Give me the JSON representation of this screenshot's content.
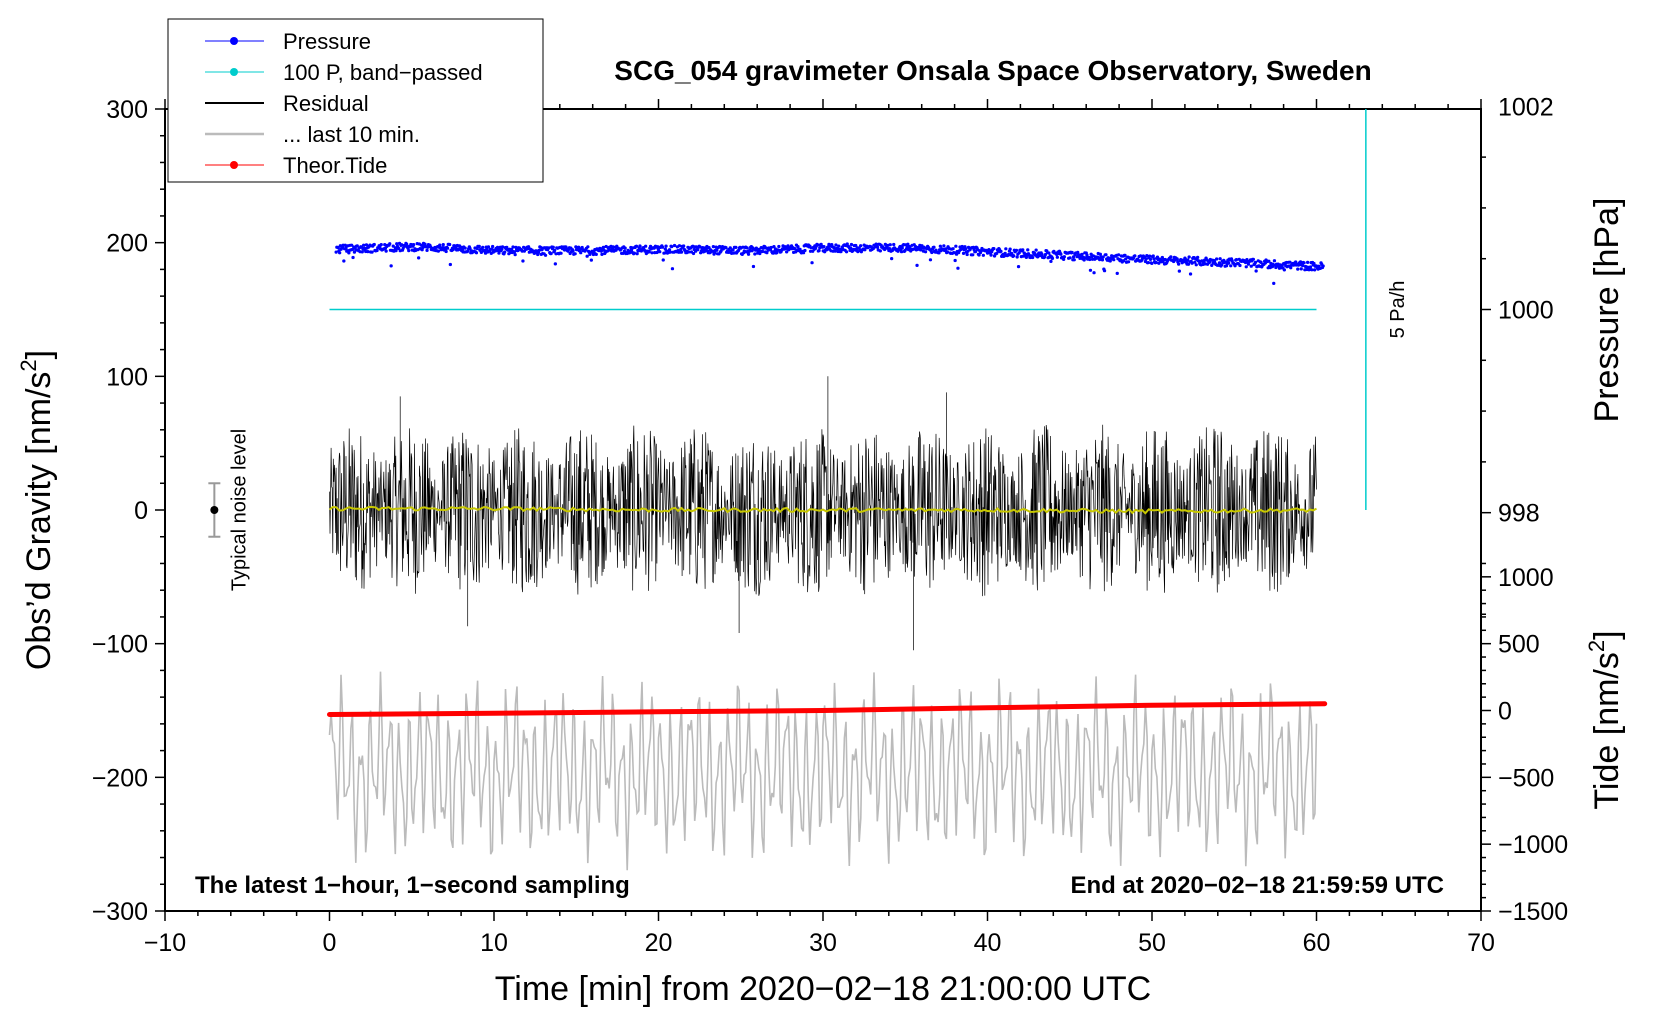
{
  "chart_data": {
    "type": "line",
    "title": "SCG_054 gravimeter Onsala Space Observatory, Sweden",
    "xlabel": "Time [min] from 2020−02−18 21:00:00 UTC",
    "ylabel_left_main": "Obs’d Gravity [nm/s",
    "ylabel_left_sup": "2",
    "ylabel_left_end": "]",
    "ylabel_right_pressure": "Pressure [hPa]",
    "ylabel_right_tide_main": "Tide [nm/s",
    "ylabel_right_tide_sup": "2",
    "ylabel_right_tide_end": "]",
    "xlim": [
      -10,
      70
    ],
    "ylim": [
      -300,
      300
    ],
    "x_ticks": [
      -10,
      0,
      10,
      20,
      30,
      40,
      50,
      60,
      70
    ],
    "x_tick_labels": [
      "−10",
      "0",
      "10",
      "20",
      "30",
      "40",
      "50",
      "60",
      "70"
    ],
    "y_ticks": [
      -300,
      -200,
      -100,
      0,
      100,
      200,
      300
    ],
    "y_tick_labels": [
      "−300",
      "−200",
      "−100",
      "0",
      "100",
      "200",
      "300"
    ],
    "pressure_axis": {
      "ticks": [
        998,
        1000,
        1002
      ],
      "tick_labels": [
        "998",
        "1000",
        "1002"
      ],
      "ref_value": 1000,
      "ref_gravity": 150,
      "gravity_per_hpa": 76
    },
    "tide_axis": {
      "ticks": [
        -1500,
        -1000,
        -500,
        0,
        500,
        1000
      ],
      "tick_labels": [
        "−1500",
        "−1000",
        "−500",
        "0",
        "500",
        "1000"
      ],
      "ref_value": 0,
      "ref_gravity": -150,
      "gravity_per_unit": 0.1
    },
    "legend_position": "top-left",
    "legend": [
      {
        "label": "Pressure",
        "color": "#0000ff",
        "marker": true
      },
      {
        "label": "100 P, band−passed",
        "color": "#00cccc",
        "marker": true
      },
      {
        "label": "Residual",
        "color": "#000000",
        "marker": false
      },
      {
        "label": "... last 10 min.",
        "color": "#bbbbbb",
        "marker": false
      },
      {
        "label": "Theor.Tide",
        "color": "#ff0000",
        "marker": true
      }
    ],
    "series": [
      {
        "name": "Pressure",
        "color": "#0000ff",
        "style": "dots",
        "x": [
          0,
          5,
          10,
          15,
          20,
          25,
          30,
          35,
          40,
          45,
          50,
          55,
          60
        ],
        "y": [
          195,
          197,
          194,
          194,
          195,
          194,
          196,
          196,
          193,
          190,
          187,
          185,
          182
        ]
      },
      {
        "name": "100 P, band−passed",
        "color": "#00cccc",
        "style": "line",
        "x": [
          0,
          60
        ],
        "y": [
          150,
          150
        ]
      },
      {
        "name": "Residual",
        "color": "#000000",
        "style": "noise",
        "x_range": [
          0,
          60
        ],
        "envelope": 65,
        "peaks": [
          {
            "x": 4.3,
            "y": 85
          },
          {
            "x": 30.3,
            "y": 100
          },
          {
            "x": 35.5,
            "y": -105
          },
          {
            "x": 37.5,
            "y": 88
          },
          {
            "x": 8.4,
            "y": -87
          },
          {
            "x": 24.9,
            "y": -92
          }
        ]
      },
      {
        "name": "Residual smoothed",
        "color": "#c8c800",
        "style": "line",
        "x": [
          0,
          10,
          20,
          30,
          40,
          50,
          60
        ],
        "y": [
          1,
          1,
          0,
          0,
          0,
          -1,
          0
        ]
      },
      {
        "name": "... last 10 min.",
        "color": "#bbbbbb",
        "style": "oscillation",
        "x_range": [
          0,
          60
        ],
        "center": -195,
        "amplitude": 40,
        "max": -110,
        "min": -270
      },
      {
        "name": "Theor.Tide",
        "color": "#ff0000",
        "style": "thick-line",
        "x": [
          0,
          10,
          20,
          30,
          40,
          50,
          60.5
        ],
        "y": [
          -153,
          -152,
          -151,
          -150,
          -148,
          -146,
          -145
        ]
      }
    ],
    "noise_bar": {
      "x": -7,
      "center": 0,
      "half_range": 20,
      "label": "Typical noise level"
    },
    "rate_bar": {
      "x": 63,
      "y_top": 300,
      "y_bottom": 0,
      "label": "5 Pa/h",
      "color": "#00cccc"
    },
    "annotation_bottom_left": "The latest 1−hour, 1−second sampling",
    "annotation_bottom_right": "End at 2020−02−18 21:59:59 UTC"
  }
}
